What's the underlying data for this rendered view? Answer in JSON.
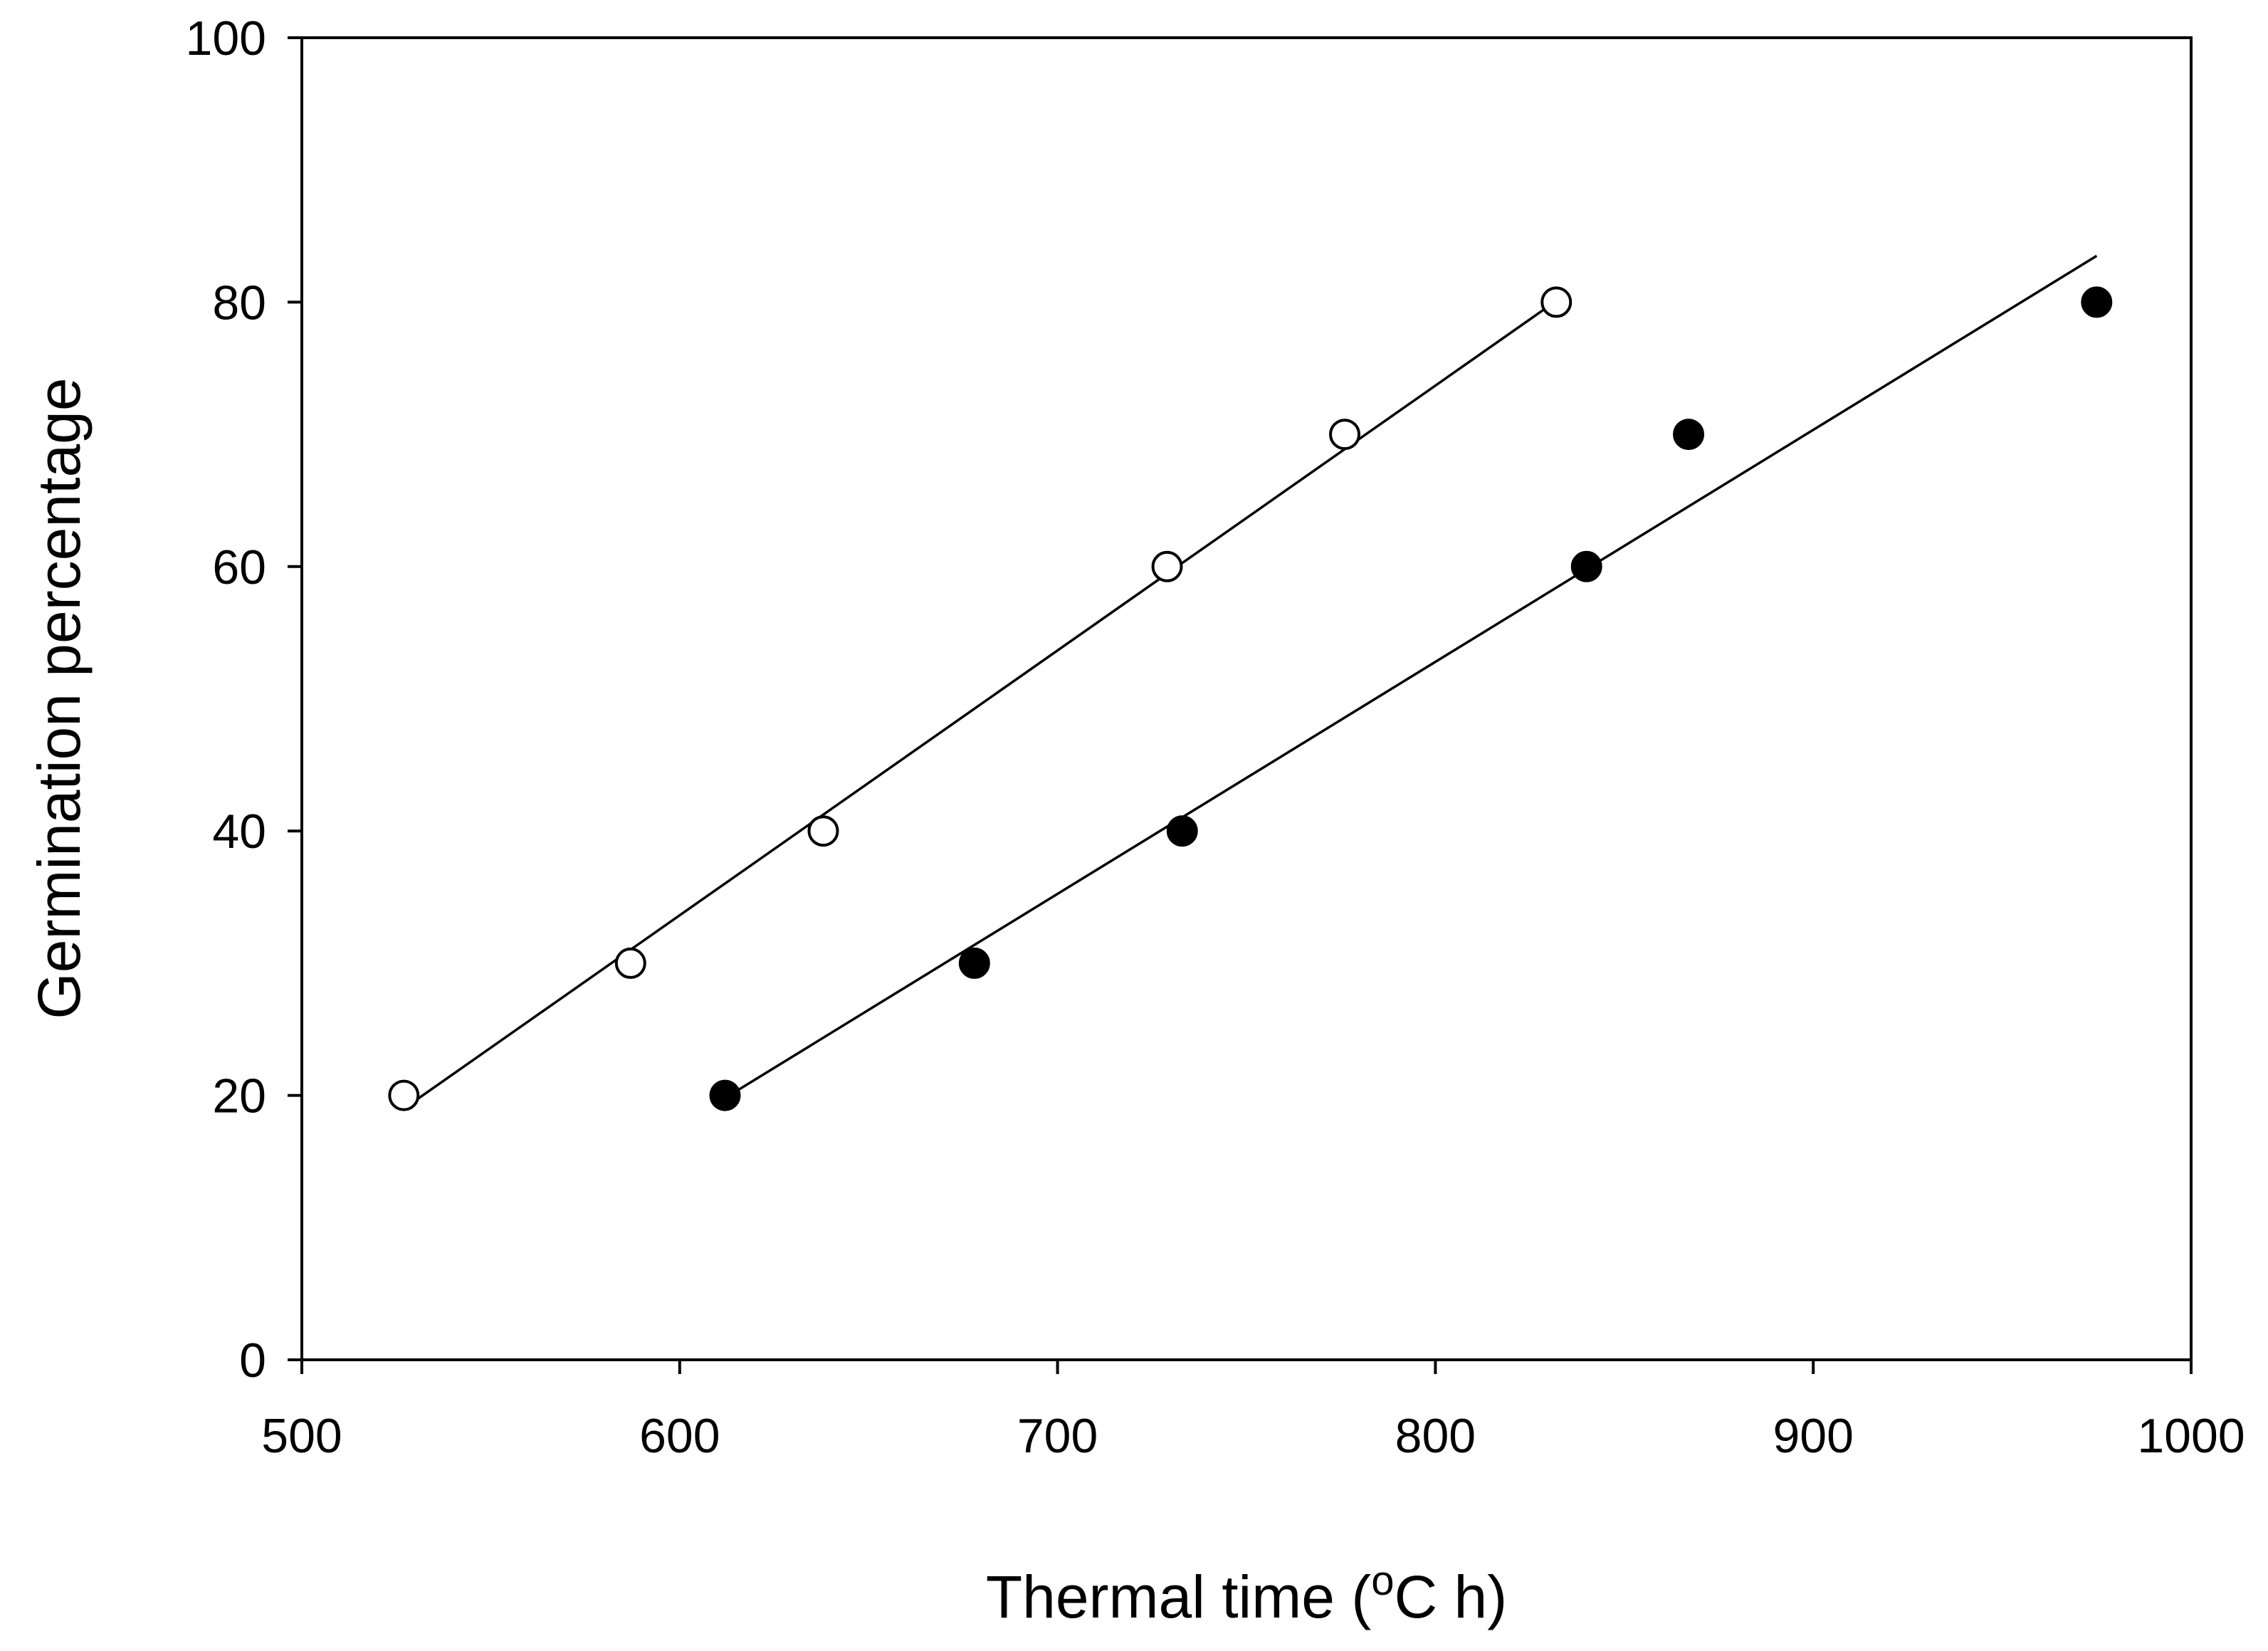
{
  "chart_data": {
    "type": "scatter",
    "title": "",
    "xlabel": "Thermal time (",
    "xlabel_superscript": "o",
    "xlabel_suffix": "C h)",
    "ylabel": "Germination percentage",
    "xlim": [
      500,
      1000
    ],
    "ylim": [
      0,
      100
    ],
    "x_ticks": [
      500,
      600,
      700,
      800,
      900,
      1000
    ],
    "y_ticks": [
      0,
      20,
      40,
      60,
      80,
      100
    ],
    "x_tick_labels": [
      "500",
      "600",
      "700",
      "800",
      "900",
      "1000"
    ],
    "y_tick_labels": [
      "0",
      "20",
      "40",
      "60",
      "80",
      "100"
    ],
    "grid": false,
    "series": [
      {
        "name": "open-circles",
        "marker": "open-circle",
        "color": "#000000",
        "x": [
          527,
          587,
          638,
          729,
          776,
          832
        ],
        "y": [
          20,
          30,
          40,
          60,
          70,
          80
        ],
        "fit_line": {
          "x": [
            527,
            832
          ],
          "y": [
            19.0,
            80.1
          ]
        }
      },
      {
        "name": "filled-circles",
        "marker": "filled-circle",
        "color": "#000000",
        "x": [
          612,
          678,
          733,
          840,
          867,
          975
        ],
        "y": [
          20,
          30,
          40,
          60,
          70,
          80
        ],
        "fit_line": {
          "x": [
            612,
            975
          ],
          "y": [
            19.8,
            83.5
          ]
        }
      }
    ]
  }
}
